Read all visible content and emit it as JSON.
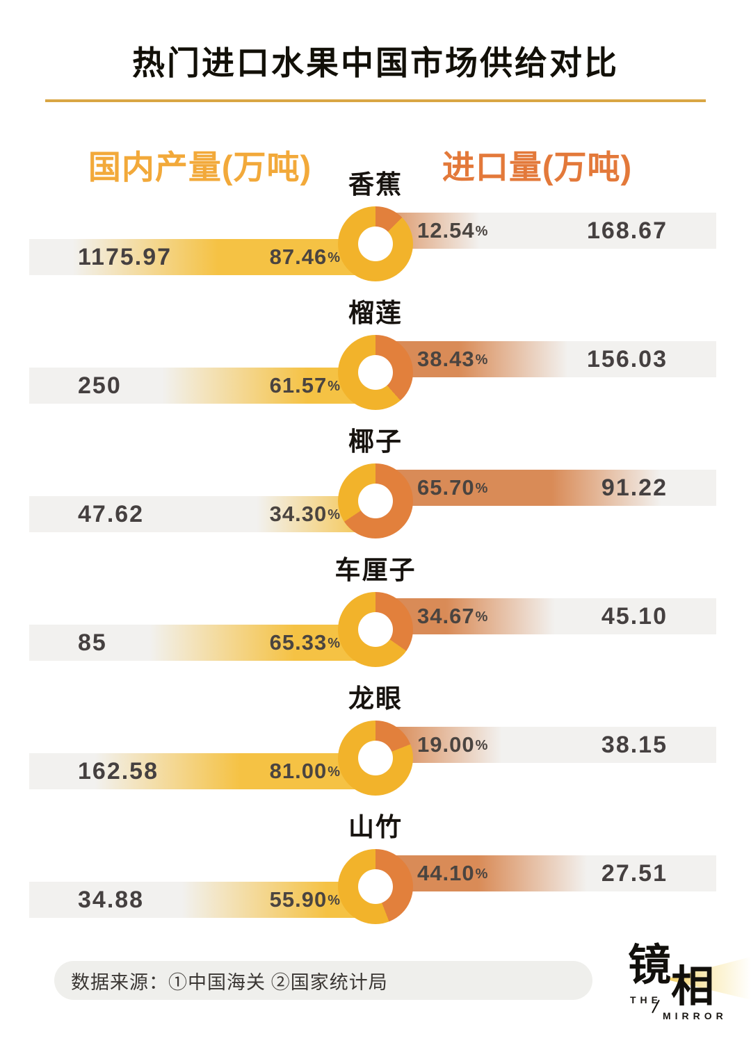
{
  "title": "热门进口水果中国市场供给对比",
  "headers": {
    "left": "国内产量(万吨)",
    "right": "进口量(万吨)"
  },
  "percent_sign": "%",
  "colors": {
    "donut_yellow": "#F2B32B",
    "donut_orange": "#E2803C",
    "bar_yellow": "#F5C244",
    "bar_orange": "#D98B57",
    "bar_bg": "#F2F1EF",
    "header_yellow": "#F2A93A",
    "header_orange": "#E3793A",
    "underline_gold": "#D9A644"
  },
  "rows": [
    {
      "fruit": "香蕉",
      "domestic_value": "1175.97",
      "domestic_pct": "87.46",
      "import_pct": "12.54",
      "import_value": "168.67"
    },
    {
      "fruit": "榴莲",
      "domestic_value": "250",
      "domestic_pct": "61.57",
      "import_pct": "38.43",
      "import_value": "156.03"
    },
    {
      "fruit": "椰子",
      "domestic_value": "47.62",
      "domestic_pct": "34.30",
      "import_pct": "65.70",
      "import_value": "91.22"
    },
    {
      "fruit": "车厘子",
      "domestic_value": "85",
      "domestic_pct": "65.33",
      "import_pct": "34.67",
      "import_value": "45.10"
    },
    {
      "fruit": "龙眼",
      "domestic_value": "162.58",
      "domestic_pct": "81.00",
      "import_pct": "19.00",
      "import_value": "38.15"
    },
    {
      "fruit": "山竹",
      "domestic_value": "34.88",
      "domestic_pct": "55.90",
      "import_pct": "44.10",
      "import_value": "27.51"
    }
  ],
  "source": "数据来源：①中国海关 ②国家统计局",
  "logo": {
    "cn_char_1": "镜",
    "cn_char_2": "相",
    "en_top": "THE",
    "en_bottom": "MIRROR"
  },
  "chart_data": {
    "type": "pie",
    "title": "热门进口水果中国市场供给对比",
    "subtitle": "每行为一个甜甜圈图：国内产量份额(黄) vs 进口量份额(橙)，两侧条形标注绝对量(万吨)",
    "categories": [
      "香蕉",
      "榴莲",
      "椰子",
      "车厘子",
      "龙眼",
      "山竹"
    ],
    "series": [
      {
        "name": "国内产量(万吨)",
        "values": [
          1175.97,
          250,
          47.62,
          85,
          162.58,
          34.88
        ],
        "share_pct": [
          87.46,
          61.57,
          34.3,
          65.33,
          81.0,
          55.9
        ],
        "color": "#F2B32B"
      },
      {
        "name": "进口量(万吨)",
        "values": [
          168.67,
          156.03,
          91.22,
          45.1,
          38.15,
          27.51
        ],
        "share_pct": [
          12.54,
          38.43,
          65.7,
          34.67,
          19.0,
          44.1
        ],
        "color": "#E2803C"
      }
    ],
    "legend_position": "top",
    "grid": false,
    "source": "数据来源：①中国海关 ②国家统计局"
  }
}
